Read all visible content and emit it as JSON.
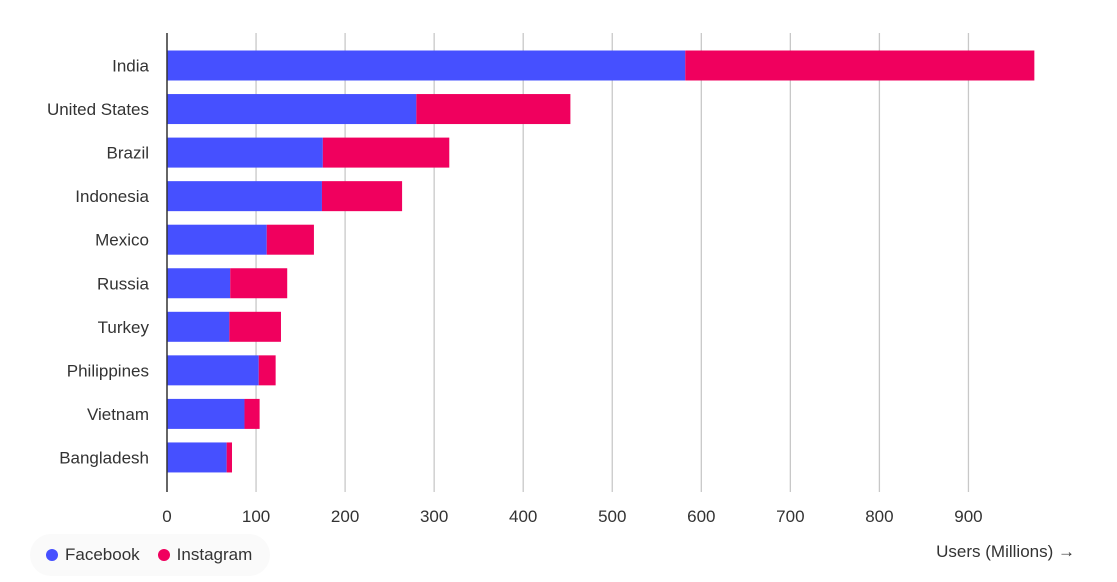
{
  "chart_data": {
    "type": "bar",
    "orientation": "horizontal",
    "stacked": true,
    "categories": [
      "India",
      "United States",
      "Brazil",
      "Indonesia",
      "Mexico",
      "Russia",
      "Turkey",
      "Philippines",
      "Vietnam",
      "Bangladesh"
    ],
    "series": [
      {
        "name": "Facebook",
        "color": "#4650ff",
        "values": [
          582,
          280,
          175,
          174,
          112,
          71,
          70,
          103,
          87,
          67
        ]
      },
      {
        "name": "Instagram",
        "color": "#f0005e",
        "values": [
          392,
          173,
          142,
          90,
          53,
          64,
          58,
          19,
          17,
          6
        ]
      }
    ],
    "xlim": [
      0,
      1000
    ],
    "xticks": [
      0,
      100,
      200,
      300,
      400,
      500,
      600,
      700,
      800,
      900
    ],
    "xlabel": "Users (Millions) →",
    "grid": true,
    "legend_position": "bottom-left"
  },
  "legend": {
    "facebook": "Facebook",
    "instagram": "Instagram"
  }
}
